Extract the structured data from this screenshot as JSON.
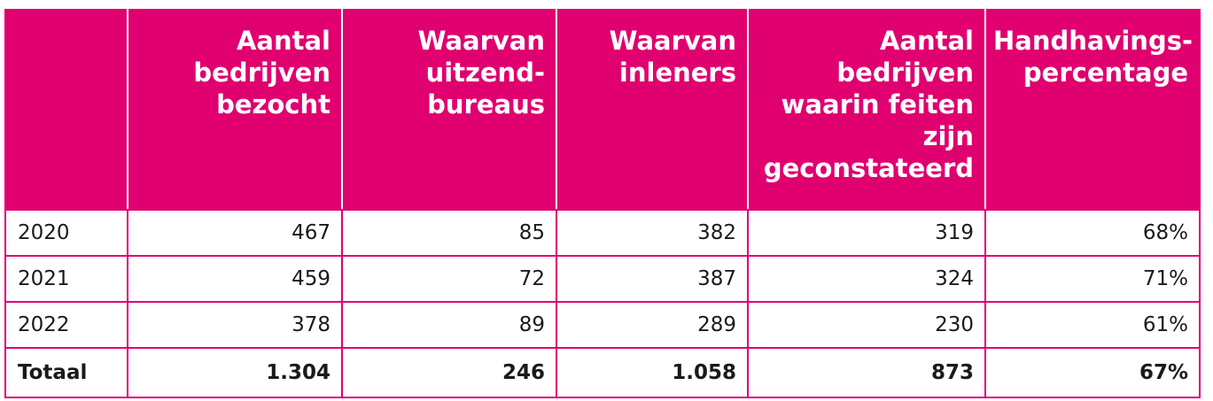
{
  "table": {
    "headers": [
      "",
      "Aantal\nbedrijven\nbezocht",
      "Waarvan\nuitzend-\nbureaus",
      "Waarvan\ninleners",
      "Aantal\nbedrijven\nwaarin feiten\nzijn\ngeconstateerd",
      "Handhavings-\npercentage"
    ],
    "rows": [
      {
        "year": "2020",
        "bezocht": "467",
        "uitzendbureaus": "85",
        "inleners": "382",
        "feiten": "319",
        "percentage": "68%"
      },
      {
        "year": "2021",
        "bezocht": "459",
        "uitzendbureaus": "72",
        "inleners": "387",
        "feiten": "324",
        "percentage": "71%"
      },
      {
        "year": "2022",
        "bezocht": "378",
        "uitzendbureaus": "89",
        "inleners": "289",
        "feiten": "230",
        "percentage": "61%"
      }
    ],
    "total": {
      "year": "Totaal",
      "bezocht": "1.304",
      "uitzendbureaus": "246",
      "inleners": "1.058",
      "feiten": "873",
      "percentage": "67%"
    }
  },
  "colors": {
    "header_bg": "#e0006f",
    "header_text": "#ffffff",
    "border": "#e0006f",
    "body_text": "#1a1a1a"
  }
}
